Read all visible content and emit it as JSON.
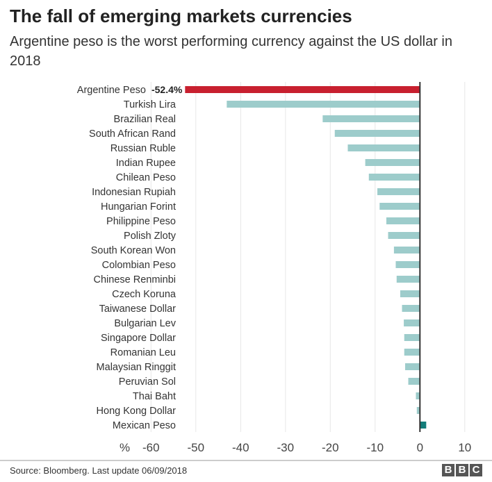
{
  "title": "The fall of emerging markets currencies",
  "subtitle": "Argentine peso is the worst performing currency against the US dollar in 2018",
  "source": "Source: Bloomberg. Last update 06/09/2018",
  "logo": [
    "B",
    "B",
    "C"
  ],
  "chart_data": {
    "type": "bar",
    "orientation": "horizontal",
    "xlabel": "%",
    "xlim": [
      -60,
      10
    ],
    "xticks": [
      -60,
      -50,
      -40,
      -30,
      -20,
      -10,
      0,
      10
    ],
    "grid": true,
    "categories": [
      "Argentine Peso",
      "Turkish Lira",
      "Brazilian Real",
      "South African Rand",
      "Russian Ruble",
      "Indian Rupee",
      "Chilean Peso",
      "Indonesian Rupiah",
      "Hungarian Forint",
      "Philippine Peso",
      "Polish Zloty",
      "South Korean Won",
      "Colombian Peso",
      "Chinese Renminbi",
      "Czech Koruna",
      "Taiwanese Dollar",
      "Bulgarian Lev",
      "Singapore Dollar",
      "Romanian Leu",
      "Malaysian Ringgit",
      "Peruvian Sol",
      "Thai Baht",
      "Hong Kong Dollar",
      "Mexican Peso"
    ],
    "values": [
      -52.4,
      -43.1,
      -21.7,
      -19.0,
      -16.1,
      -12.2,
      -11.4,
      -9.5,
      -9.0,
      -7.5,
      -7.1,
      -5.8,
      -5.4,
      -5.2,
      -4.4,
      -4.0,
      -3.6,
      -3.5,
      -3.5,
      -3.3,
      -2.6,
      -0.9,
      -0.7,
      1.4
    ],
    "data_labels": {
      "Argentine Peso": "-52.4%"
    },
    "colors": {
      "highlight": "#c8202f",
      "negative": "#9dcccb",
      "positive": "#137d7a",
      "zero_line": "#333333",
      "grid": "#e6e6e6"
    }
  }
}
